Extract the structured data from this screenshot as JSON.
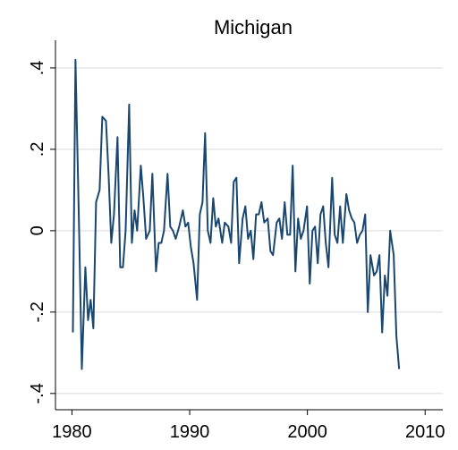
{
  "chart_data": {
    "type": "line",
    "title": "Michigan",
    "x": [
      1980.08,
      1980.3,
      1980.61,
      1980.84,
      1981.14,
      1981.37,
      1981.59,
      1981.82,
      1982.05,
      1982.35,
      1982.58,
      1982.89,
      1983.11,
      1983.34,
      1983.57,
      1983.87,
      1984.1,
      1984.33,
      1984.56,
      1984.86,
      1985.09,
      1985.32,
      1985.54,
      1985.85,
      1986.07,
      1986.3,
      1986.61,
      1986.83,
      1987.14,
      1987.37,
      1987.59,
      1987.82,
      1988.12,
      1988.35,
      1988.58,
      1988.81,
      1989.11,
      1989.42,
      1989.64,
      1989.87,
      1990.1,
      1990.33,
      1990.63,
      1990.86,
      1991.09,
      1991.31,
      1991.54,
      1991.77,
      1992.0,
      1992.22,
      1992.45,
      1992.76,
      1992.98,
      1993.29,
      1993.52,
      1993.74,
      1993.97,
      1994.2,
      1994.5,
      1994.73,
      1994.96,
      1995.19,
      1995.41,
      1995.64,
      1995.87,
      1996.1,
      1996.33,
      1996.63,
      1996.86,
      1997.08,
      1997.39,
      1997.62,
      1997.84,
      1998.07,
      1998.3,
      1998.53,
      1998.75,
      1998.98,
      1999.21,
      1999.44,
      1999.67,
      1999.97,
      2000.2,
      2000.43,
      2000.65,
      2000.88,
      2001.11,
      2001.34,
      2001.56,
      2001.79,
      2002.1,
      2002.32,
      2002.55,
      2002.78,
      2003.01,
      2003.31,
      2003.54,
      2003.77,
      2003.99,
      2004.22,
      2004.45,
      2004.68,
      2004.91,
      2005.13,
      2005.36,
      2005.66,
      2005.89,
      2006.12,
      2006.35,
      2006.58,
      2006.8,
      2007.03,
      2007.33,
      2007.56,
      2007.79
    ],
    "series": [
      {
        "color": "#1a476f",
        "values": [
          -0.25,
          0.42,
          0,
          -0.34,
          -0.09,
          -0.22,
          -0.17,
          -0.24,
          0.07,
          0.1,
          0.28,
          0.27,
          0.14,
          -0.03,
          0.04,
          0.23,
          -0.09,
          -0.09,
          0,
          0.31,
          -0.03,
          0.05,
          0,
          0.16,
          0.08,
          -0.02,
          0,
          0.14,
          -0.1,
          -0.03,
          -0.03,
          0,
          0.14,
          0.01,
          0,
          -0.02,
          0.01,
          0.05,
          0.01,
          0.02,
          -0.04,
          -0.08,
          -0.17,
          0.04,
          0.07,
          0.24,
          0,
          -0.03,
          0.08,
          0.01,
          0.03,
          -0.03,
          0.02,
          0.01,
          -0.03,
          0.12,
          0.13,
          -0.08,
          0.03,
          0.06,
          -0.02,
          0,
          -0.07,
          0.04,
          0.04,
          0.07,
          0.02,
          0.03,
          -0.05,
          -0.06,
          0.02,
          0.03,
          -0.02,
          0.07,
          -0.01,
          -0.01,
          0.16,
          -0.1,
          0.03,
          -0.02,
          0,
          0.06,
          -0.13,
          0,
          0.01,
          -0.08,
          0.04,
          0.06,
          -0.03,
          -0.09,
          0.13,
          -0.01,
          -0.03,
          0.06,
          -0.03,
          0.09,
          0.05,
          0.03,
          0.02,
          -0.03,
          -0.01,
          0,
          0.04,
          -0.2,
          -0.06,
          -0.11,
          -0.1,
          -0.06,
          -0.25,
          -0.11,
          -0.16,
          0,
          -0.06,
          -0.26,
          -0.34
        ]
      }
    ],
    "xlim": [
      1978.6,
      2011.5
    ],
    "xticks": [
      1980,
      1990,
      2000,
      2010
    ],
    "ylim": [
      -0.44,
      0.468
    ],
    "yticks": [
      {
        "value": -0.4,
        "label": "-.4"
      },
      {
        "value": -0.2,
        "label": "-.2"
      },
      0,
      {
        "value": 0.2,
        "label": ".2"
      },
      {
        "value": 0.4,
        "label": ".4"
      }
    ],
    "grid": true
  }
}
